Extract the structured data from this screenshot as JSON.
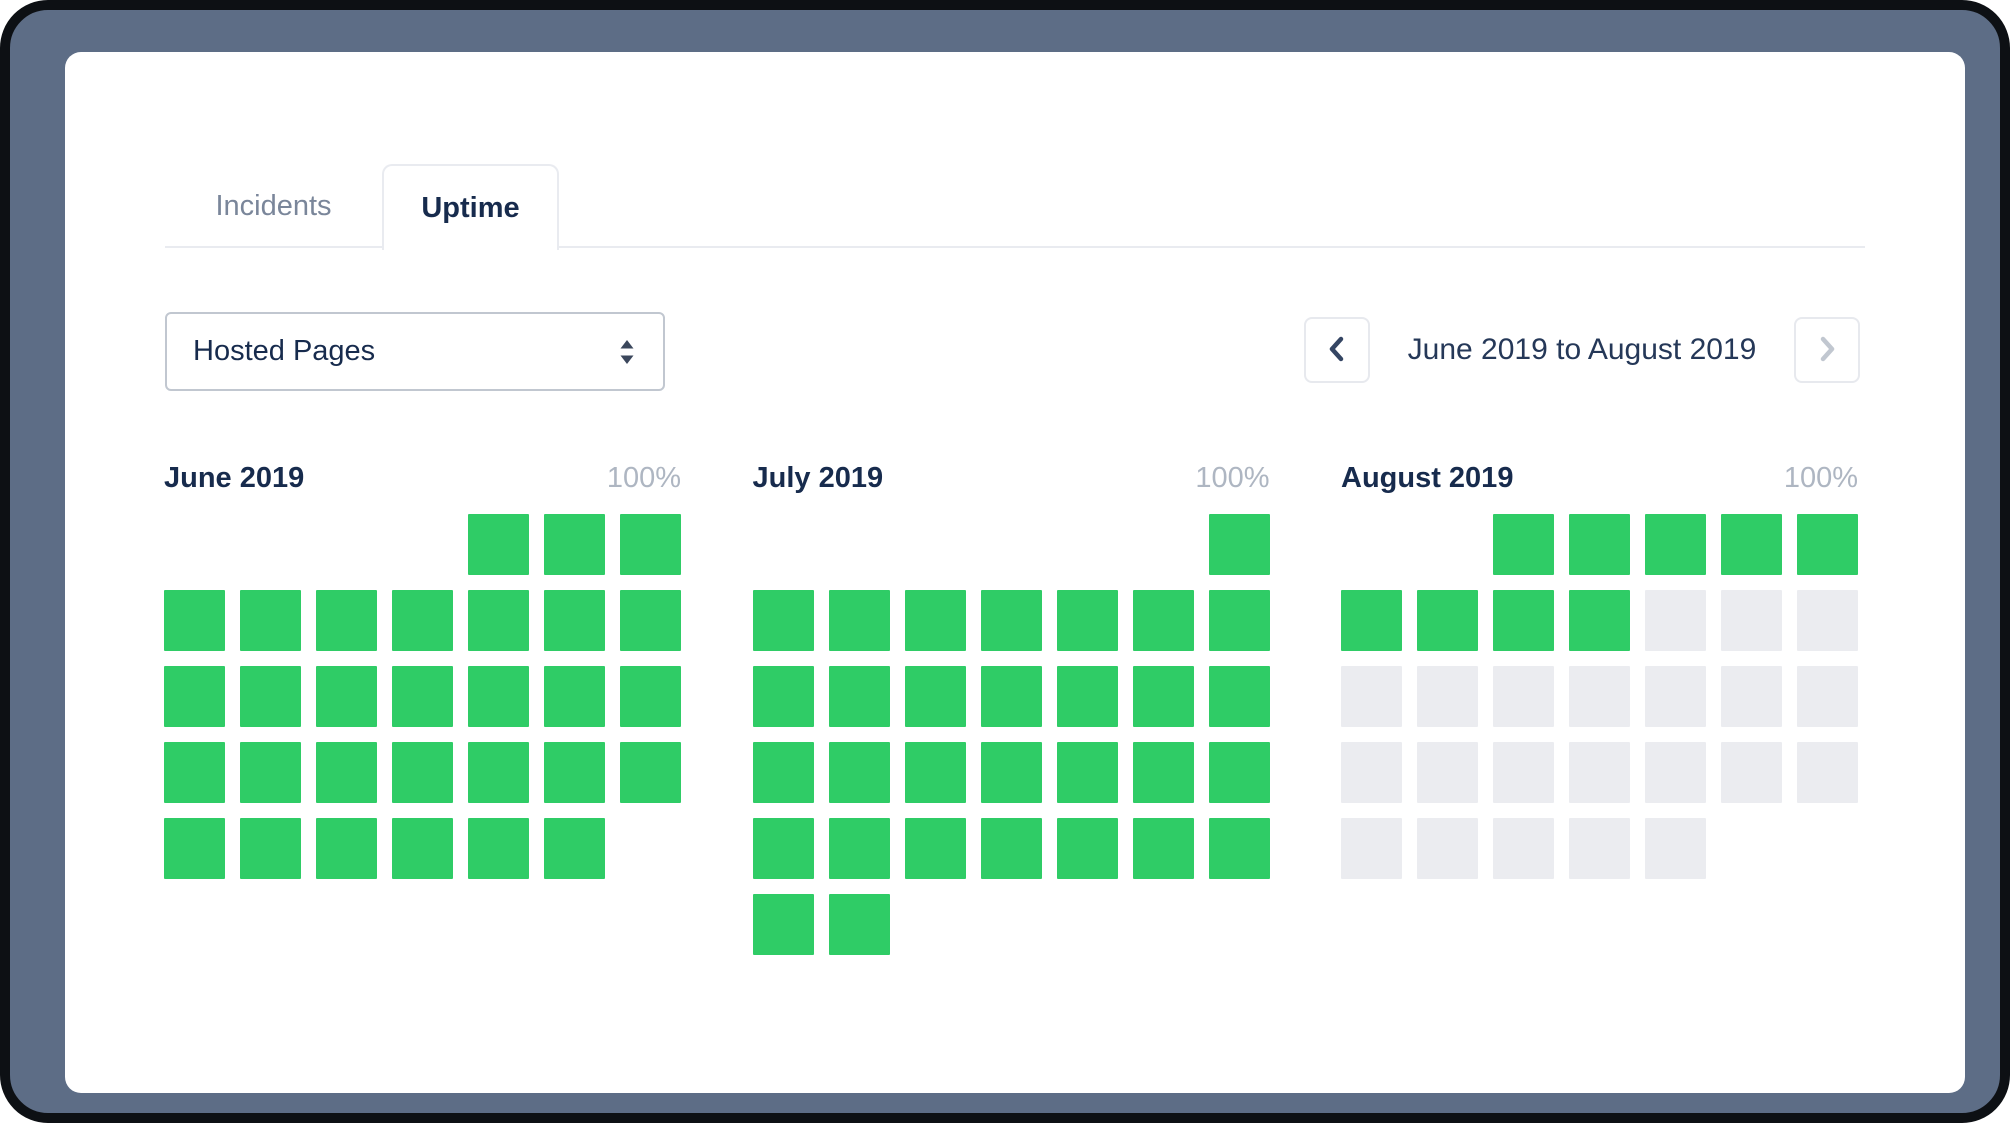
{
  "window": {
    "frame_color": "#5d6d86"
  },
  "tabs": [
    {
      "label": "Incidents",
      "active": false
    },
    {
      "label": "Uptime",
      "active": true
    }
  ],
  "filter_select": {
    "value": "Hosted Pages",
    "icon": "select-arrows-icon"
  },
  "range_nav": {
    "label": "June 2019 to August 2019",
    "prev_icon": "chevron-left-icon",
    "next_icon": "chevron-right-icon",
    "prev_enabled": true,
    "next_enabled": false
  },
  "legend": {
    "up_color": "#2fcc66",
    "future_color": "#ebecf0",
    "up_meaning": "100% uptime day",
    "future_meaning": "no data / future day"
  },
  "months": [
    {
      "title": "June 2019",
      "uptime": "100%",
      "rows": [
        [
          "e",
          "e",
          "e",
          "e",
          "u",
          "u",
          "u"
        ],
        [
          "u",
          "u",
          "u",
          "u",
          "u",
          "u",
          "u"
        ],
        [
          "u",
          "u",
          "u",
          "u",
          "u",
          "u",
          "u"
        ],
        [
          "u",
          "u",
          "u",
          "u",
          "u",
          "u",
          "u"
        ],
        [
          "u",
          "u",
          "u",
          "u",
          "u",
          "u",
          "e"
        ]
      ]
    },
    {
      "title": "July 2019",
      "uptime": "100%",
      "rows": [
        [
          "e",
          "e",
          "e",
          "e",
          "e",
          "e",
          "u"
        ],
        [
          "u",
          "u",
          "u",
          "u",
          "u",
          "u",
          "u"
        ],
        [
          "u",
          "u",
          "u",
          "u",
          "u",
          "u",
          "u"
        ],
        [
          "u",
          "u",
          "u",
          "u",
          "u",
          "u",
          "u"
        ],
        [
          "u",
          "u",
          "u",
          "u",
          "u",
          "u",
          "u"
        ],
        [
          "u",
          "u",
          "e",
          "e",
          "e",
          "e",
          "e"
        ]
      ]
    },
    {
      "title": "August 2019",
      "uptime": "100%",
      "rows": [
        [
          "e",
          "e",
          "u",
          "u",
          "u",
          "u",
          "u"
        ],
        [
          "u",
          "u",
          "u",
          "u",
          "f",
          "f",
          "f"
        ],
        [
          "f",
          "f",
          "f",
          "f",
          "f",
          "f",
          "f"
        ],
        [
          "f",
          "f",
          "f",
          "f",
          "f",
          "f",
          "f"
        ],
        [
          "f",
          "f",
          "f",
          "f",
          "f",
          "e",
          "e"
        ]
      ]
    }
  ]
}
